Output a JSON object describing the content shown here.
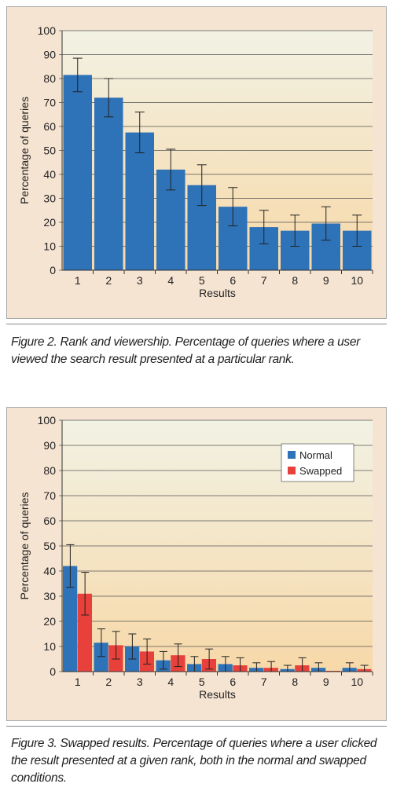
{
  "figures": [
    {
      "caption": "Figure 2. Rank and viewership. Percentage of queries where a user viewed the search result presented at a particular rank."
    },
    {
      "caption": "Figure 3. Swapped results. Percentage of queries where a user clicked the result presented at a given rank, both in the normal and swapped conditions."
    }
  ],
  "colors": {
    "normal": "#2e72b8",
    "swapped": "#e8403a",
    "plot_top": "#f2f2e4",
    "plot_bottom": "#f7d8a8",
    "grid": "#555555"
  },
  "chart_data": [
    {
      "type": "bar",
      "title": "",
      "xlabel": "Results",
      "ylabel": "Percentage of queries",
      "ylim": [
        0,
        100
      ],
      "yticks": [
        0,
        10,
        20,
        30,
        40,
        50,
        60,
        70,
        80,
        90,
        100
      ],
      "categories": [
        "1",
        "2",
        "3",
        "4",
        "5",
        "6",
        "7",
        "8",
        "9",
        "10"
      ],
      "grid": true,
      "legend": null,
      "series": [
        {
          "values": [
            81.5,
            72,
            57.5,
            42,
            35.5,
            26.5,
            18,
            16.5,
            19.5,
            16.5
          ],
          "error": [
            7,
            8,
            8.5,
            8.5,
            8.5,
            8,
            7,
            6.5,
            7,
            6.5
          ]
        }
      ]
    },
    {
      "type": "bar",
      "title": "",
      "xlabel": "Results",
      "ylabel": "Percentage of queries",
      "ylim": [
        0,
        100
      ],
      "yticks": [
        0,
        10,
        20,
        30,
        40,
        50,
        60,
        70,
        80,
        90,
        100
      ],
      "categories": [
        "1",
        "2",
        "3",
        "4",
        "5",
        "6",
        "7",
        "8",
        "9",
        "10"
      ],
      "grid": true,
      "legend": "top-right",
      "series": [
        {
          "name": "Normal",
          "values": [
            42,
            11.5,
            10,
            4.5,
            3,
            3,
            1.5,
            1,
            1.5,
            1.5
          ],
          "error": [
            8.5,
            5.5,
            5,
            3.5,
            3,
            3,
            2,
            1.5,
            2,
            2
          ]
        },
        {
          "name": "Swapped",
          "values": [
            31,
            10.5,
            8,
            6.5,
            5,
            2.5,
            1.5,
            2.5,
            0.3,
            1
          ],
          "error": [
            8.5,
            5.5,
            5,
            4.5,
            4,
            3,
            2.5,
            3,
            0,
            1.5
          ]
        }
      ]
    }
  ]
}
